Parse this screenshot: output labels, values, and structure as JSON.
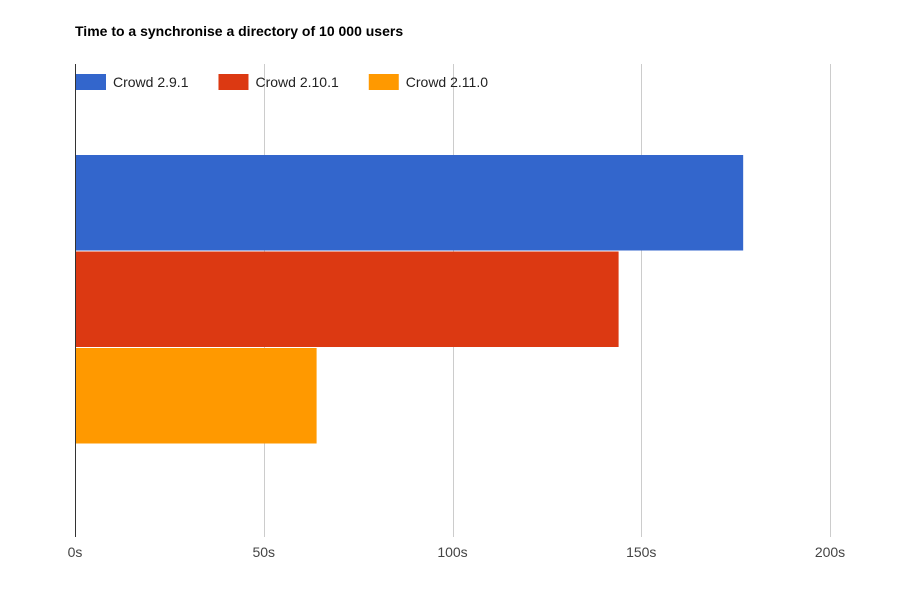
{
  "chart_data": {
    "type": "bar",
    "orientation": "horizontal",
    "title": "Time to a synchronise a directory of 10 000 users",
    "xlabel": "",
    "ylabel": "",
    "categories": [
      ""
    ],
    "series": [
      {
        "name": "Crowd 2.9.1",
        "values": [
          177
        ],
        "color": "#3366cc"
      },
      {
        "name": "Crowd 2.10.1",
        "values": [
          144
        ],
        "color": "#dc3912"
      },
      {
        "name": "Crowd 2.11.0",
        "values": [
          64
        ],
        "color": "#ff9900"
      }
    ],
    "xlim": [
      0,
      200
    ],
    "x_ticks": [
      0,
      50,
      100,
      150,
      200
    ],
    "x_tick_labels": [
      "0s",
      "50s",
      "100s",
      "150s",
      "200s"
    ],
    "grid": true,
    "legend_position": "top-left"
  }
}
